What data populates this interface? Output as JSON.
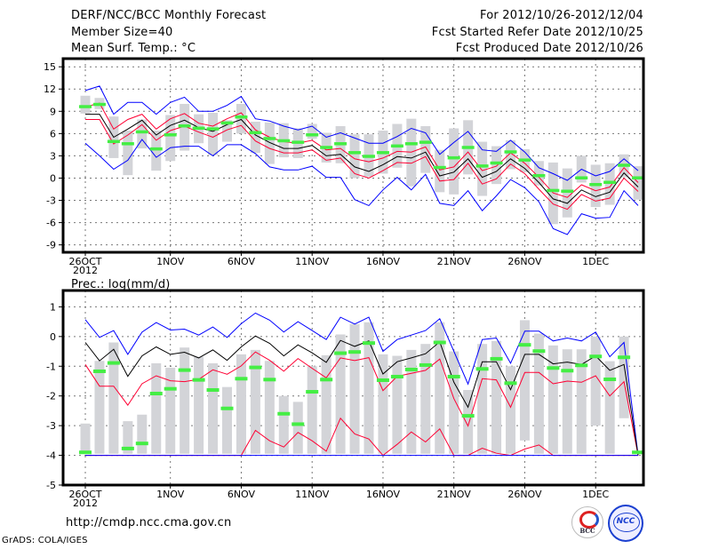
{
  "header": {
    "title": "DERF/NCC/BCC Monthly Forecast",
    "member_size": "Member Size=40",
    "variable": "Mean Surf. Temp.: °C",
    "period": "For 2012/10/26-2012/12/04",
    "started": "Fcst Started Refer Date 2012/10/25",
    "produced": "Fcst Produced Date 2012/10/26"
  },
  "footer": {
    "url": "http://cmdp.ncc.cma.gov.cn",
    "credit": "GrADS: COLA/IGES",
    "logo_left": "BCC",
    "logo_right": "NCC"
  },
  "colors": {
    "spread": "#0000ff",
    "inner": "#ff0033",
    "mean": "#000000",
    "obs": "#44ee44",
    "box": "#d3d4d8"
  },
  "chart_data": [
    {
      "type": "line",
      "title": "Mean Surf. Temp.: °C",
      "ylim": [
        -10,
        16.1
      ],
      "yticks": [
        15,
        12,
        9,
        6,
        3,
        0,
        -3,
        -6,
        -9
      ],
      "ytick_labels": [
        "15",
        "12",
        "9",
        "6",
        "3",
        "0",
        "-3",
        "-6",
        "-9"
      ],
      "xtick_days": [
        0,
        6,
        11,
        16,
        21,
        26,
        31,
        36
      ],
      "xtick_labels": [
        "26OCT",
        "1NOV",
        "6NOV",
        "11NOV",
        "16NOV",
        "21NOV",
        "26NOV",
        "1DEC"
      ],
      "xtick_year": "2012",
      "grid": true,
      "series": [
        {
          "name": "max",
          "color": "#0000ff",
          "values": [
            11.8,
            12.4,
            8.6,
            10.2,
            10.2,
            8.6,
            10.2,
            10.9,
            9.0,
            9.0,
            9.8,
            11.0,
            8.0,
            7.7,
            7.0,
            6.5,
            7.0,
            5.5,
            6.1,
            5.4,
            4.7,
            4.7,
            5.6,
            6.7,
            6.1,
            3.2,
            4.8,
            6.3,
            3.8,
            3.6,
            5.1,
            3.5,
            1.4,
            0.6,
            -0.3,
            1.2,
            0.3,
            0.9,
            2.6,
            1.0
          ]
        },
        {
          "name": "upper",
          "color": "#ff0033",
          "values": [
            9.6,
            10.1,
            6.6,
            7.9,
            8.6,
            6.6,
            8.0,
            8.7,
            7.4,
            7.0,
            8.0,
            8.8,
            6.5,
            5.5,
            4.9,
            4.7,
            5.1,
            3.8,
            4.0,
            2.6,
            2.2,
            2.7,
            3.6,
            3.5,
            4.2,
            1.1,
            1.5,
            3.5,
            1.0,
            1.6,
            3.4,
            2.0,
            0.1,
            -2.0,
            -2.6,
            -0.9,
            -1.7,
            -1.2,
            1.4,
            -0.6
          ]
        },
        {
          "name": "mean",
          "color": "#000000",
          "values": [
            8.6,
            8.6,
            5.5,
            6.6,
            7.8,
            5.8,
            7.1,
            7.8,
            6.8,
            6.3,
            7.2,
            7.9,
            5.8,
            4.8,
            4.0,
            4.0,
            4.4,
            3.0,
            3.2,
            1.5,
            0.9,
            1.8,
            2.9,
            2.7,
            3.5,
            0.3,
            0.8,
            2.6,
            0.1,
            0.9,
            2.6,
            1.3,
            -0.6,
            -2.8,
            -3.4,
            -1.6,
            -2.5,
            -1.9,
            0.7,
            -1.2
          ]
        },
        {
          "name": "lower",
          "color": "#ff0033",
          "values": [
            7.9,
            7.9,
            4.6,
            5.8,
            7.2,
            5.1,
            6.4,
            7.0,
            6.2,
            5.5,
            6.5,
            7.1,
            5.0,
            4.0,
            3.4,
            3.4,
            3.8,
            2.4,
            2.7,
            0.6,
            0.0,
            1.0,
            2.1,
            2.0,
            2.9,
            -0.4,
            -0.2,
            2.0,
            -0.8,
            -0.1,
            1.9,
            0.6,
            -1.5,
            -3.5,
            -4.2,
            -2.2,
            -3.1,
            -2.7,
            0.0,
            -1.8
          ]
        },
        {
          "name": "min",
          "color": "#0000ff",
          "values": [
            4.7,
            3.0,
            1.2,
            2.4,
            5.2,
            2.8,
            4.1,
            4.3,
            4.3,
            3.0,
            4.5,
            4.5,
            3.3,
            1.5,
            1.1,
            1.1,
            1.6,
            0.1,
            0.1,
            -2.9,
            -3.7,
            -1.6,
            0.1,
            -1.6,
            0.5,
            -3.4,
            -3.7,
            -1.7,
            -4.4,
            -2.4,
            -0.2,
            -1.3,
            -3.2,
            -6.8,
            -7.6,
            -4.8,
            -5.4,
            -5.3,
            -1.7,
            -3.7
          ]
        }
      ],
      "observed": [
        9.6,
        9.9,
        4.9,
        4.6,
        6.2,
        3.9,
        5.8,
        7.0,
        6.7,
        6.6,
        7.4,
        8.2,
        6.1,
        5.3,
        5.0,
        4.8,
        5.8,
        4.1,
        4.6,
        3.4,
        2.9,
        3.4,
        4.3,
        4.6,
        4.8,
        1.4,
        2.7,
        4.1,
        1.6,
        2.0,
        3.5,
        2.4,
        0.3,
        -1.7,
        -1.8,
        0.0,
        -0.9,
        -0.6,
        1.7,
        0.0
      ],
      "box_low": [
        8.7,
        9.3,
        2.7,
        0.4,
        4.0,
        1.0,
        2.3,
        3.7,
        4.7,
        3.1,
        4.9,
        6.0,
        3.4,
        1.9,
        2.8,
        2.7,
        5.3,
        2.1,
        2.0,
        0.0,
        0.2,
        0.6,
        1.4,
        -1.1,
        0.7,
        -1.9,
        -2.2,
        0.5,
        -2.4,
        -0.8,
        1.2,
        0.8,
        -1.0,
        -6.2,
        -5.3,
        -0.6,
        -3.9,
        -3.6,
        0.1,
        -2.9
      ],
      "box_high": [
        11.1,
        10.8,
        8.3,
        6.4,
        7.9,
        6.4,
        8.5,
        10.0,
        8.6,
        8.8,
        7.8,
        10.0,
        7.6,
        7.5,
        7.4,
        6.7,
        7.3,
        6.1,
        7.0,
        5.9,
        5.9,
        6.4,
        7.3,
        8.0,
        7.0,
        3.8,
        6.7,
        7.8,
        4.9,
        4.3,
        5.1,
        3.9,
        2.3,
        2.1,
        1.3,
        3.0,
        1.8,
        2.0,
        3.2,
        1.6
      ]
    },
    {
      "type": "line",
      "title": "Prec.: log(mm/d)",
      "ylim": [
        -5,
        1.55
      ],
      "yticks": [
        1,
        0,
        -1,
        -2,
        -3,
        -4,
        -5
      ],
      "ytick_labels": [
        "1",
        "0",
        "-1",
        "-2",
        "-3",
        "-4",
        "-5"
      ],
      "xtick_days": [
        0,
        6,
        11,
        16,
        21,
        26,
        31,
        36
      ],
      "xtick_labels": [
        "26OCT",
        "1NOV",
        "6NOV",
        "11NOV",
        "16NOV",
        "21NOV",
        "26NOV",
        "1DEC"
      ],
      "xtick_year": "2012",
      "grid": true,
      "series": [
        {
          "name": "max",
          "color": "#0000ff",
          "values": [
            0.57,
            -0.03,
            0.2,
            -0.6,
            0.15,
            0.47,
            0.22,
            0.25,
            0.05,
            0.32,
            -0.03,
            0.43,
            0.79,
            0.55,
            0.15,
            0.5,
            0.2,
            -0.1,
            0.65,
            0.42,
            0.65,
            -0.5,
            -0.1,
            0.05,
            0.2,
            0.6,
            -0.5,
            -1.6,
            -0.1,
            -0.05,
            -0.9,
            0.18,
            0.18,
            -0.15,
            -0.05,
            -0.15,
            0.15,
            -0.68,
            -0.2,
            -4.0
          ]
        },
        {
          "name": "upper",
          "color": "#ff0033",
          "values": [
            -0.94,
            -1.67,
            -1.67,
            -2.31,
            -1.59,
            -1.32,
            -1.49,
            -1.52,
            -1.44,
            -1.12,
            -1.27,
            -0.99,
            -0.52,
            -0.8,
            -1.17,
            -0.74,
            -1.07,
            -1.39,
            -0.72,
            -0.81,
            -0.71,
            -1.82,
            -1.34,
            -1.24,
            -1.14,
            -0.76,
            -2.09,
            -3.01,
            -1.42,
            -1.46,
            -2.38,
            -1.21,
            -1.21,
            -1.59,
            -1.5,
            -1.54,
            -1.32,
            -2.0,
            -1.52,
            -4.0
          ]
        },
        {
          "name": "mean",
          "color": "#000000",
          "values": [
            -0.2,
            -0.82,
            -0.43,
            -1.34,
            -0.65,
            -0.35,
            -0.6,
            -0.53,
            -0.72,
            -0.45,
            -0.8,
            -0.35,
            0.02,
            -0.23,
            -0.65,
            -0.28,
            -0.55,
            -0.87,
            -0.13,
            -0.33,
            -0.15,
            -1.26,
            -0.85,
            -0.72,
            -0.58,
            -0.18,
            -1.54,
            -2.38,
            -0.85,
            -0.85,
            -1.79,
            -0.6,
            -0.6,
            -0.92,
            -0.86,
            -0.94,
            -0.65,
            -1.14,
            -0.94,
            -4.0
          ]
        },
        {
          "name": "lower",
          "color": "#ff0033",
          "values": [
            -4,
            -4,
            -4,
            -4,
            -4,
            -4,
            -4,
            -4,
            -4,
            -4,
            -4,
            -4,
            -3.16,
            -3.51,
            -3.72,
            -3.23,
            -3.51,
            -3.86,
            -2.75,
            -3.28,
            -3.45,
            -4.0,
            -3.63,
            -3.21,
            -3.55,
            -3.11,
            -4.0,
            -4.0,
            -3.76,
            -3.93,
            -4.0,
            -3.79,
            -3.65,
            -4,
            -4,
            -4,
            -4,
            -4,
            -4,
            -4
          ]
        },
        {
          "name": "min",
          "color": "#0000ff",
          "values": [
            -4,
            -4,
            -4,
            -4,
            -4,
            -4,
            -4,
            -4,
            -4,
            -4,
            -4,
            -4,
            -4,
            -4,
            -4,
            -4,
            -4,
            -4,
            -4,
            -4,
            -4,
            -4,
            -4,
            -4,
            -4,
            -4,
            -4,
            -4,
            -4,
            -4,
            -4,
            -4,
            -4,
            -4,
            -4,
            -4,
            -4,
            -4,
            -4,
            -4
          ]
        }
      ],
      "observed": [
        -3.9,
        -1.17,
        -0.89,
        -3.77,
        -3.6,
        -1.92,
        -1.76,
        -1.13,
        -1.46,
        -1.8,
        -2.42,
        -1.42,
        -1.04,
        -1.45,
        -2.6,
        -2.95,
        -1.86,
        -1.45,
        -0.56,
        -0.52,
        -0.22,
        -1.47,
        -1.35,
        -1.11,
        -0.96,
        -0.2,
        -1.35,
        -2.67,
        -1.09,
        -0.75,
        -1.57,
        -0.28,
        -0.49,
        -1.06,
        -1.15,
        -0.97,
        -0.67,
        -1.44,
        -0.7,
        -3.9
      ],
      "box_low": [
        -3.95,
        -3.95,
        -3.95,
        -3.95,
        -3.95,
        -3.95,
        -3.95,
        -3.95,
        -3.95,
        -3.95,
        -3.95,
        -3.95,
        -3.95,
        -3.95,
        -3.95,
        -3.95,
        -3.95,
        -3.95,
        -3.95,
        -3.95,
        -3.95,
        -3.95,
        -3.95,
        -3.95,
        -3.95,
        -3.95,
        -3.95,
        -3.95,
        -3.95,
        -3.95,
        -3.95,
        -3.5,
        -3.95,
        -3.95,
        -3.95,
        -3.95,
        -3.0,
        -3.95,
        -2.75,
        -3.95
      ],
      "box_high": [
        -2.93,
        -0.82,
        -0.2,
        -2.85,
        -2.63,
        -0.9,
        -1.05,
        -0.37,
        -0.68,
        -0.9,
        -1.7,
        -0.6,
        -0.45,
        -0.82,
        -2.0,
        -2.2,
        -1.0,
        -0.63,
        0.07,
        0.42,
        0.48,
        -0.6,
        -0.65,
        -0.45,
        -0.25,
        0.48,
        -0.5,
        -1.8,
        -0.25,
        -0.15,
        -1.0,
        0.55,
        0.1,
        -0.3,
        -0.43,
        -0.43,
        0.0,
        -0.83,
        0.0,
        -3.95
      ]
    }
  ]
}
